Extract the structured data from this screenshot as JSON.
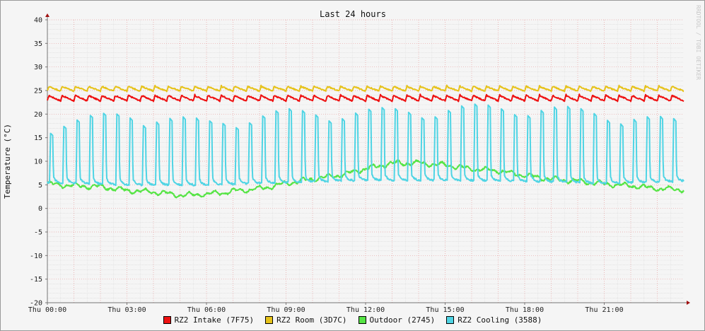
{
  "chart_data": {
    "type": "line",
    "title": "Last 24 hours",
    "ylabel": "Temperature (°C)",
    "watermark": "RRDTOOL / TOBI OETIKER",
    "ylim": [
      -20,
      40
    ],
    "yticks": [
      40,
      35,
      30,
      25,
      20,
      15,
      10,
      5,
      0,
      -5,
      -10,
      -15,
      -20
    ],
    "xlim": [
      "Thu 00:00",
      "Thu 24:00"
    ],
    "xticks": [
      "Thu 00:00",
      "Thu 03:00",
      "Thu 06:00",
      "Thu 09:00",
      "Thu 12:00",
      "Thu 15:00",
      "Thu 18:00",
      "Thu 21:00"
    ],
    "grid": true,
    "legend_position": "bottom",
    "series": [
      {
        "name": "RZ2 Intake (7F75)",
        "color": "#ee1111",
        "style": "sawtooth",
        "base": 22.8,
        "amplitude": 1.3,
        "cycles": 48
      },
      {
        "name": "RZ2 Room (3D7C)",
        "color": "#e6c21a",
        "style": "sawtooth",
        "base": 24.9,
        "amplitude": 1.1,
        "cycles": 48
      },
      {
        "name": "Outdoor (2745)",
        "color": "#55e444",
        "style": "smooth",
        "x_hours": [
          0,
          1,
          2,
          3,
          4,
          5,
          6,
          7,
          8,
          9,
          10,
          11,
          12,
          13,
          14,
          15,
          16,
          17,
          18,
          19,
          20,
          21,
          22,
          23,
          24
        ],
        "values": [
          5.2,
          4.8,
          4.6,
          3.8,
          3.5,
          2.8,
          3.0,
          3.6,
          4.2,
          5.3,
          6.2,
          7.0,
          8.4,
          9.6,
          9.6,
          9.2,
          8.4,
          8.0,
          7.0,
          6.2,
          5.8,
          5.2,
          4.8,
          4.2,
          4.0
        ]
      },
      {
        "name": "RZ2 Cooling (3588)",
        "color": "#4fd4e4",
        "style": "spikes",
        "cycles": 48,
        "base_x_hours": [
          0,
          3,
          6,
          9,
          12,
          15,
          18,
          21,
          24
        ],
        "base_values": [
          5.5,
          5.0,
          5.0,
          5.5,
          6.0,
          6.0,
          5.8,
          5.3,
          5.8
        ],
        "peak_values": [
          18.5,
          21.0,
          19.0,
          21.2,
          21.3,
          22.0,
          22.5,
          21.0,
          19.0
        ]
      }
    ]
  }
}
